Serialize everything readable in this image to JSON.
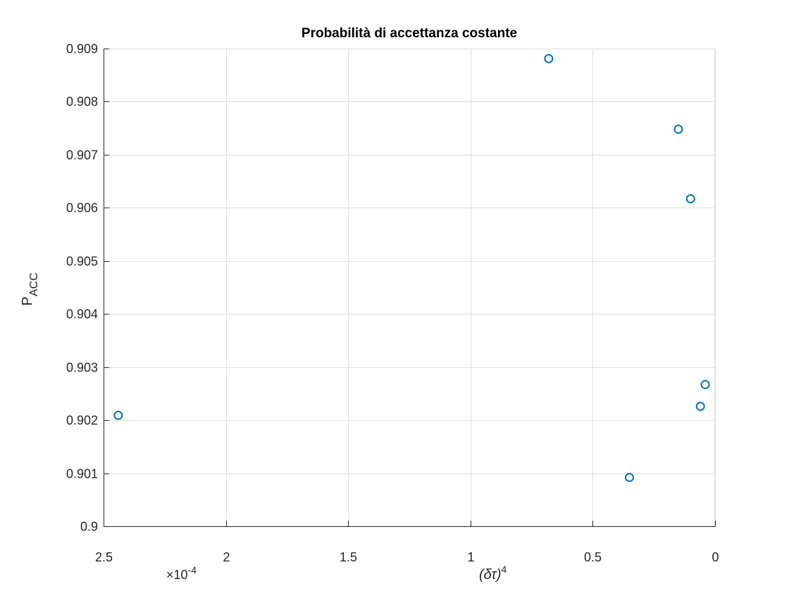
{
  "chart_data": {
    "type": "scatter",
    "title": "Probabilità di accettanza costante",
    "xlabel": "(δτ)",
    "xlabel_exponent": "4",
    "ylabel": "P",
    "ylabel_subscript": "ACC",
    "x_multiplier_prefix": "×10",
    "x_multiplier_exponent": "-4",
    "x_direction": "reversed",
    "xlim": [
      0,
      2.5
    ],
    "ylim": [
      0.9,
      0.909
    ],
    "xticks": [
      2.5,
      2,
      1.5,
      1,
      0.5,
      0
    ],
    "xtick_labels": [
      "2.5",
      "2",
      "1.5",
      "1",
      "0.5",
      "0"
    ],
    "yticks": [
      0.9,
      0.901,
      0.902,
      0.903,
      0.904,
      0.905,
      0.906,
      0.907,
      0.908,
      0.909
    ],
    "ytick_labels": [
      "0.9",
      "0.901",
      "0.902",
      "0.903",
      "0.904",
      "0.905",
      "0.906",
      "0.907",
      "0.908",
      "0.909"
    ],
    "grid": true,
    "marker": "circle",
    "series": [
      {
        "name": "P_ACC",
        "color": "#0072BD",
        "x": [
          2.44,
          0.68,
          0.35,
          0.15,
          0.1,
          0.06,
          0.04
        ],
        "y": [
          0.90209,
          0.90881,
          0.90092,
          0.90748,
          0.90617,
          0.90226,
          0.90267
        ]
      }
    ]
  }
}
